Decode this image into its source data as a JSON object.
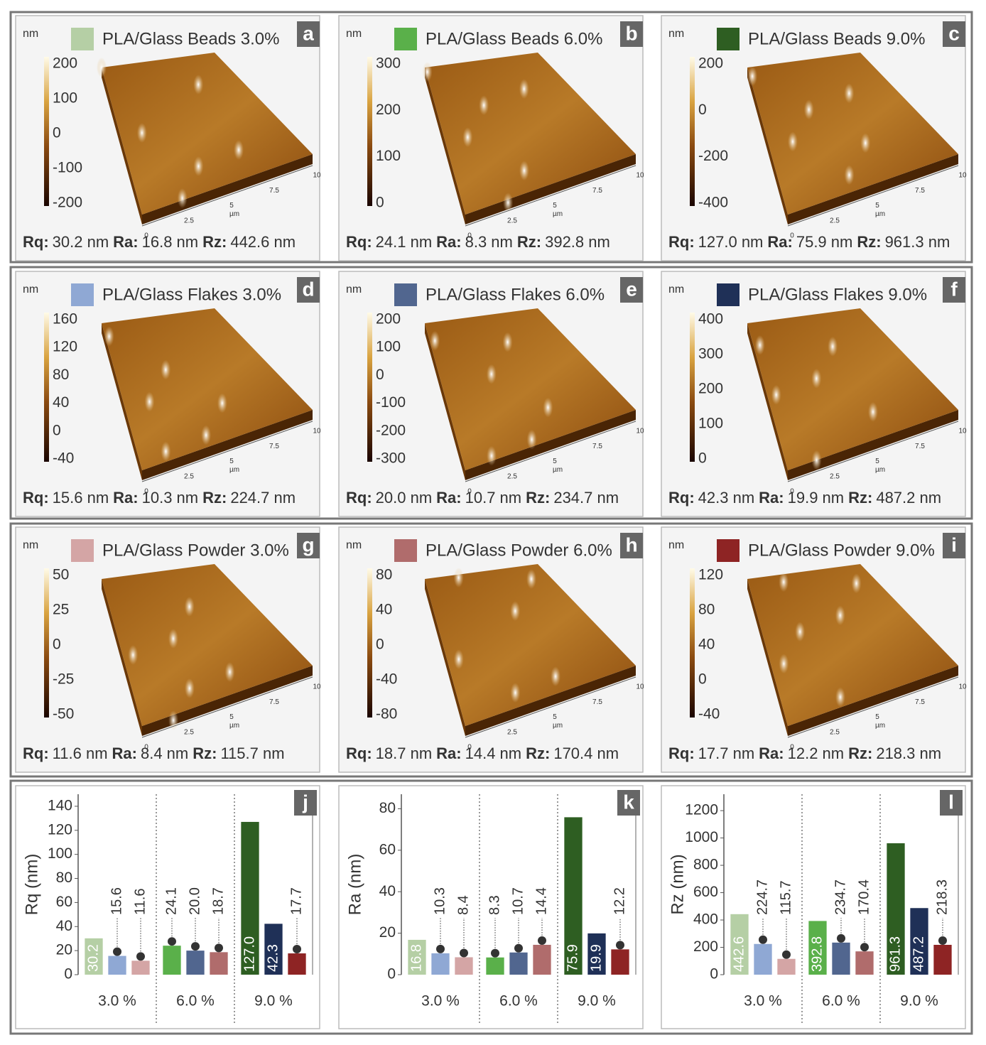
{
  "panels": [
    {
      "letter": "a",
      "title": "PLA/Glass Beads 3.0%",
      "color": "#b5cfa5",
      "unit": "nm",
      "scale": [
        200,
        100,
        0,
        -100,
        -200
      ],
      "stats": [
        {
          "label": "Rq:",
          "value": "30.2 nm"
        },
        {
          "label": "Ra:",
          "value": "16.8 nm"
        },
        {
          "label": "Rz:",
          "value": "442.6 nm"
        }
      ]
    },
    {
      "letter": "b",
      "title": "PLA/Glass Beads 6.0%",
      "color": "#5ab04a",
      "unit": "nm",
      "scale": [
        300,
        200,
        100,
        0
      ],
      "stats": [
        {
          "label": "Rq:",
          "value": "24.1 nm"
        },
        {
          "label": "Ra:",
          "value": "8.3 nm"
        },
        {
          "label": "Rz:",
          "value": "392.8 nm"
        }
      ]
    },
    {
      "letter": "c",
      "title": "PLA/Glass Beads 9.0%",
      "color": "#2e5e22",
      "unit": "nm",
      "scale": [
        200,
        0,
        -200,
        -400
      ],
      "stats": [
        {
          "label": "Rq:",
          "value": "127.0 nm"
        },
        {
          "label": "Ra:",
          "value": "75.9 nm"
        },
        {
          "label": "Rz:",
          "value": "961.3 nm"
        }
      ]
    },
    {
      "letter": "d",
      "title": "PLA/Glass Flakes 3.0%",
      "color": "#8fa8d4",
      "unit": "nm",
      "scale": [
        160,
        120,
        80,
        40,
        0,
        -40
      ],
      "stats": [
        {
          "label": "Rq:",
          "value": "15.6 nm"
        },
        {
          "label": "Ra:",
          "value": "10.3 nm"
        },
        {
          "label": "Rz:",
          "value": "224.7 nm"
        }
      ]
    },
    {
      "letter": "e",
      "title": "PLA/Glass Flakes 6.0%",
      "color": "#51668f",
      "unit": "nm",
      "scale": [
        200,
        100,
        0,
        -100,
        -200,
        -300
      ],
      "stats": [
        {
          "label": "Rq:",
          "value": "20.0 nm"
        },
        {
          "label": "Ra:",
          "value": "10.7 nm"
        },
        {
          "label": "Rz:",
          "value": "234.7 nm"
        }
      ]
    },
    {
      "letter": "f",
      "title": "PLA/Glass Flakes 9.0%",
      "color": "#1f3057",
      "unit": "nm",
      "scale": [
        400,
        300,
        200,
        100,
        0
      ],
      "stats": [
        {
          "label": "Rq:",
          "value": "42.3 nm"
        },
        {
          "label": "Ra:",
          "value": "19.9 nm"
        },
        {
          "label": "Rz:",
          "value": "487.2 nm"
        }
      ]
    },
    {
      "letter": "g",
      "title": "PLA/Glass Powder 3.0%",
      "color": "#d4a5a5",
      "unit": "nm",
      "scale": [
        50,
        25,
        0,
        -25,
        -50
      ],
      "stats": [
        {
          "label": "Rq:",
          "value": "11.6 nm"
        },
        {
          "label": "Ra:",
          "value": "8.4 nm"
        },
        {
          "label": "Rz:",
          "value": "115.7 nm"
        }
      ]
    },
    {
      "letter": "h",
      "title": "PLA/Glass Powder 6.0%",
      "color": "#b06c6c",
      "unit": "nm",
      "scale": [
        80,
        40,
        0,
        -40,
        -80
      ],
      "stats": [
        {
          "label": "Rq:",
          "value": "18.7 nm"
        },
        {
          "label": "Ra:",
          "value": "14.4 nm"
        },
        {
          "label": "Rz:",
          "value": "170.4 nm"
        }
      ]
    },
    {
      "letter": "i",
      "title": "PLA/Glass Powder 9.0%",
      "color": "#8e2424",
      "unit": "nm",
      "scale": [
        120,
        80,
        40,
        0,
        -40
      ],
      "stats": [
        {
          "label": "Rq:",
          "value": "17.7 nm"
        },
        {
          "label": "Ra:",
          "value": "12.2 nm"
        },
        {
          "label": "Rz:",
          "value": "218.3 nm"
        }
      ]
    }
  ],
  "surface_axis": {
    "ticks": [
      "0",
      "2.5",
      "5",
      "7.5",
      "10"
    ],
    "unit": "µm"
  },
  "chart_data": [
    {
      "type": "bar",
      "letter": "j",
      "ylabel": "Rq (nm)",
      "categories": [
        "3.0 %",
        "6.0 %",
        "9.0 %"
      ],
      "ylim": [
        0,
        150
      ],
      "yticks": [
        0,
        20,
        40,
        60,
        80,
        100,
        120,
        140
      ],
      "series": [
        {
          "colors": [
            "#b5cfa5",
            "#5ab04a",
            "#2e5e22"
          ],
          "values": [
            30.2,
            24.1,
            127.0
          ],
          "value_labels": [
            "30.2",
            "24.1",
            "127.0"
          ]
        },
        {
          "colors": [
            "#8fa8d4",
            "#51668f",
            "#1f3057"
          ],
          "values": [
            15.6,
            20.0,
            42.3
          ],
          "value_labels": [
            "15.6",
            "20.0",
            "42.3"
          ]
        },
        {
          "colors": [
            "#d4a5a5",
            "#b06c6c",
            "#8e2424"
          ],
          "values": [
            11.6,
            18.7,
            17.7
          ],
          "value_labels": [
            "11.6",
            "18.7",
            "17.7"
          ]
        }
      ]
    },
    {
      "type": "bar",
      "letter": "k",
      "ylabel": "Ra (nm)",
      "categories": [
        "3.0 %",
        "6.0 %",
        "9.0 %"
      ],
      "ylim": [
        0,
        87
      ],
      "yticks": [
        0,
        20,
        40,
        60,
        80
      ],
      "series": [
        {
          "colors": [
            "#b5cfa5",
            "#5ab04a",
            "#2e5e22"
          ],
          "values": [
            16.8,
            8.3,
            75.9
          ],
          "value_labels": [
            "16.8",
            "8.3",
            "75.9"
          ]
        },
        {
          "colors": [
            "#8fa8d4",
            "#51668f",
            "#1f3057"
          ],
          "values": [
            10.3,
            10.7,
            19.9
          ],
          "value_labels": [
            "10.3",
            "10.7",
            "19.9"
          ]
        },
        {
          "colors": [
            "#d4a5a5",
            "#b06c6c",
            "#8e2424"
          ],
          "values": [
            8.4,
            14.4,
            12.2
          ],
          "value_labels": [
            "8.4",
            "14.4",
            "12.2"
          ]
        }
      ]
    },
    {
      "type": "bar",
      "letter": "l",
      "ylabel": "Rz (nm)",
      "categories": [
        "3.0 %",
        "6.0 %",
        "9.0 %"
      ],
      "ylim": [
        0,
        1320
      ],
      "yticks": [
        0,
        200,
        400,
        600,
        800,
        1000,
        1200
      ],
      "series": [
        {
          "colors": [
            "#b5cfa5",
            "#5ab04a",
            "#2e5e22"
          ],
          "values": [
            442.6,
            392.8,
            961.3
          ],
          "value_labels": [
            "442.6",
            "392.8",
            "961.3"
          ]
        },
        {
          "colors": [
            "#8fa8d4",
            "#51668f",
            "#1f3057"
          ],
          "values": [
            224.7,
            234.7,
            487.2
          ],
          "value_labels": [
            "224.7",
            "234.7",
            "487.2"
          ]
        },
        {
          "colors": [
            "#d4a5a5",
            "#b06c6c",
            "#8e2424"
          ],
          "values": [
            115.7,
            170.4,
            218.3
          ],
          "value_labels": [
            "115.7",
            "170.4",
            "218.3"
          ]
        }
      ]
    }
  ]
}
